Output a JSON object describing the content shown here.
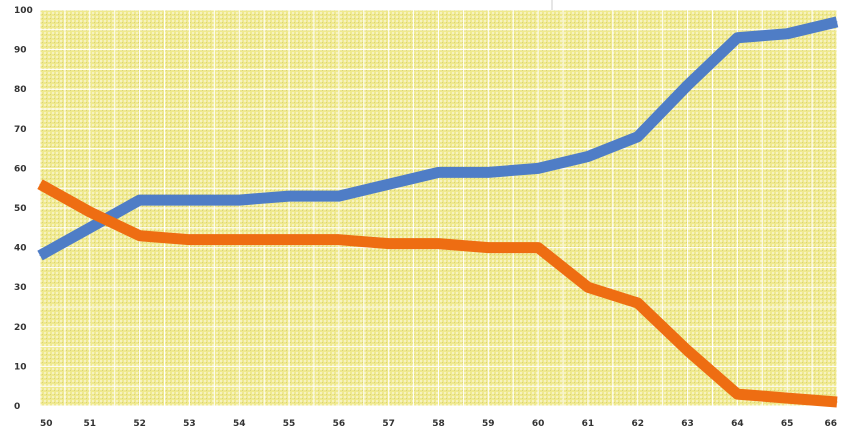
{
  "colors": {
    "plot_background": "#efe98e",
    "grid": "#ffffff",
    "series_blue": "#4f7dc6",
    "series_orange": "#ee6d12",
    "tick_text": "#333333"
  },
  "chart_data": {
    "type": "line",
    "title": "",
    "xlabel": "",
    "ylabel": "",
    "ylim": [
      0,
      100
    ],
    "grid": true,
    "x": [
      "50",
      "51",
      "52",
      "53",
      "54",
      "55",
      "56",
      "57",
      "58",
      "59",
      "60",
      "61",
      "62",
      "63",
      "64",
      "65",
      "66"
    ],
    "y_ticks": [
      "0",
      "10",
      "20",
      "30",
      "40",
      "50",
      "60",
      "70",
      "80",
      "90",
      "100"
    ],
    "series": [
      {
        "color": "#4f7dc6",
        "values": [
          38,
          45,
          52,
          52,
          52,
          53,
          53,
          56,
          59,
          59,
          60,
          63,
          68,
          81,
          93,
          94,
          97
        ]
      },
      {
        "color": "#ee6d12",
        "values": [
          56,
          49,
          43,
          42,
          42,
          42,
          42,
          41,
          41,
          40,
          40,
          30,
          26,
          14,
          3,
          2,
          1
        ]
      }
    ]
  }
}
